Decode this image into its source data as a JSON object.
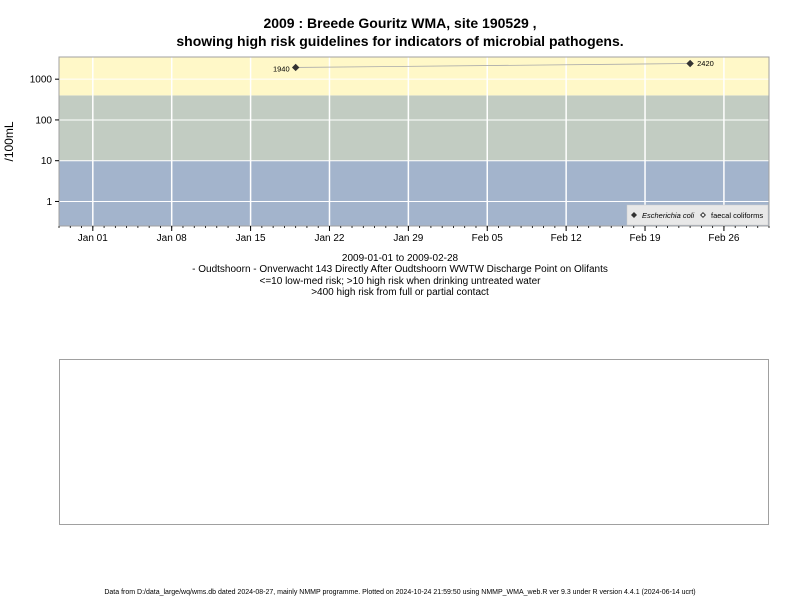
{
  "title_line1": "2009 : Breede Gouritz WMA, site 190529 ,",
  "title_line2": "showing high risk guidelines for indicators of microbial pathogens.",
  "date_range": "2009-01-01 to 2009-02-28",
  "site_desc": "- Oudtshoorn - Onverwacht 143 Directly After Oudtshoorn WWTW Discharge Point on Olifants",
  "risk_note1": "<=10 low-med risk; >10 high risk when drinking untreated water",
  "risk_note2": ">400 high risk from full or partial contact",
  "footer": "Data from D:/data_large/wq/wms.db dated 2024-08-27, mainly NMMP programme. Plotted on 2024-10-24 21:59:50 using NMMP_WMA_web.R ver 9.3 under R version 4.4.1 (2024-06-14 ucrt)",
  "colors": {
    "low_band": "#a3b4cc",
    "mid_band": "#c2ccc2",
    "high_band": "#fff8c8",
    "grid": "#ffffff",
    "ecoli": "#333333",
    "faecal": "#333333"
  },
  "chart_data": {
    "type": "scatter",
    "ylabel": "/100mL",
    "y_scale": "log",
    "ylim": [
      0.25,
      3500
    ],
    "y_ticks": [
      1,
      10,
      100,
      1000
    ],
    "y_tick_labels": [
      "1",
      "10",
      "100",
      "1000"
    ],
    "xlim": [
      "2008-12-29",
      "2009-03-02"
    ],
    "x_ticks": [
      "2009-01-01",
      "2009-01-08",
      "2009-01-15",
      "2009-01-22",
      "2009-01-29",
      "2009-02-05",
      "2009-02-12",
      "2009-02-19",
      "2009-02-26"
    ],
    "x_tick_labels": [
      "Jan 01",
      "Jan 08",
      "Jan 15",
      "Jan 22",
      "Jan 29",
      "Feb 05",
      "Feb 12",
      "Feb 19",
      "Feb 26"
    ],
    "risk_bands": [
      {
        "from": 0.25,
        "to": 10,
        "level": "low-med"
      },
      {
        "from": 10,
        "to": 400,
        "level": "high (drinking)"
      },
      {
        "from": 400,
        "to": 3500,
        "level": "high (contact)"
      }
    ],
    "grid": true,
    "legend_position": "bottom-right",
    "series": [
      {
        "name": "Escherichia coli",
        "marker": "filled-diamond",
        "x": [
          "2009-01-19",
          "2009-02-23"
        ],
        "y": [
          1940,
          2420
        ],
        "labels": [
          "1940",
          "2420"
        ]
      },
      {
        "name": "faecal coliforms",
        "marker": "open-diamond",
        "x": [],
        "y": []
      }
    ]
  }
}
